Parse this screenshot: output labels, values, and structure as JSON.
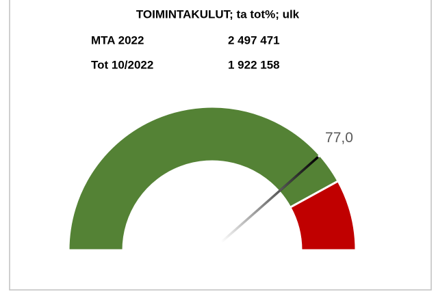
{
  "chart_data": {
    "type": "gauge",
    "title": "TOIMINTAKULUT; ta tot%; ulk",
    "rows": [
      [
        "MTA 2022",
        "2 497 471"
      ],
      [
        "Tot 10/2022",
        "1 922 158"
      ]
    ],
    "lim": [
      0,
      100
    ],
    "segments": [
      77,
      7,
      16
    ],
    "colors": [
      "#548235",
      "#548235",
      "#c00000"
    ],
    "value": 77,
    "value_label": "77,0",
    "needle_color": "#000000"
  }
}
